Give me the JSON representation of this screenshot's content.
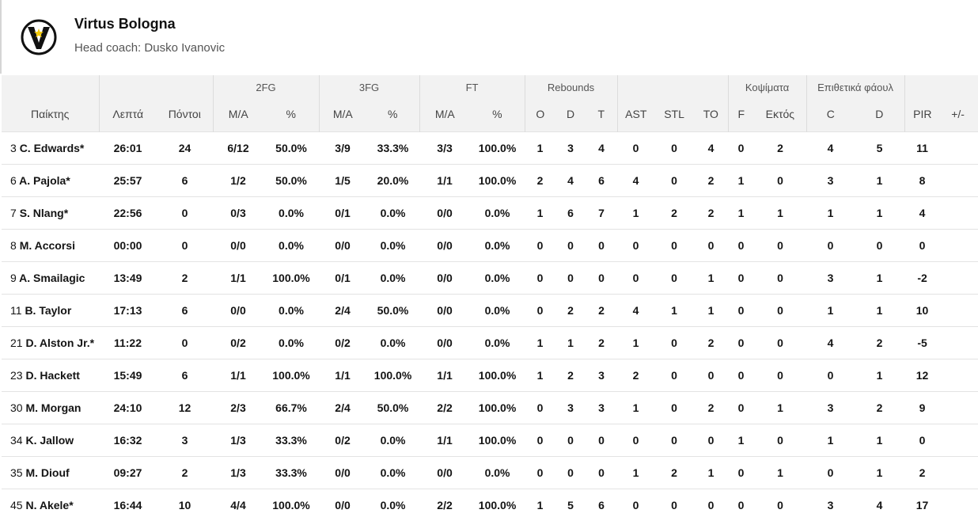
{
  "team": {
    "name": "Virtus Bologna",
    "coach": "Head coach: Dusko Ivanovic"
  },
  "icons": {
    "logo": "virtus-v-star-logo"
  },
  "colors": {
    "header_bg": "#f2f2f2",
    "logo_star": "#f2c700"
  },
  "groups": {
    "fg2": "2FG",
    "fg3": "3FG",
    "ft": "FT",
    "rebounds": "Rebounds",
    "blocks": "Κοψίματα",
    "fouls": "Επιθετικά φάουλ"
  },
  "columns": {
    "player": "Παίκτης",
    "minutes": "Λεπτά",
    "points": "Πόντοι",
    "fg2_ma": "M/A",
    "fg2_pct": "%",
    "fg3_ma": "M/A",
    "fg3_pct": "%",
    "ft_ma": "M/A",
    "ft_pct": "%",
    "reb_o": "O",
    "reb_d": "D",
    "reb_t": "T",
    "ast": "AST",
    "stl": "STL",
    "to": "TO",
    "blk_f": "F",
    "blk_ag": "Εκτός",
    "foul_c": "C",
    "foul_d": "D",
    "pir": "PIR",
    "pm": "+/-"
  },
  "rows": [
    {
      "num": "3",
      "name": "C. Edwards*",
      "min": "26:01",
      "pts": "24",
      "fg2": "6/12",
      "fg2p": "50.0%",
      "fg3": "3/9",
      "fg3p": "33.3%",
      "ft": "3/3",
      "ftp": "100.0%",
      "o": "1",
      "d": "3",
      "t": "4",
      "ast": "0",
      "stl": "0",
      "to": "4",
      "bf": "0",
      "bag": "2",
      "fc": "4",
      "fd": "5",
      "pir": "11",
      "pm": ""
    },
    {
      "num": "6",
      "name": "A. Pajola*",
      "min": "25:57",
      "pts": "6",
      "fg2": "1/2",
      "fg2p": "50.0%",
      "fg3": "1/5",
      "fg3p": "20.0%",
      "ft": "1/1",
      "ftp": "100.0%",
      "o": "2",
      "d": "4",
      "t": "6",
      "ast": "4",
      "stl": "0",
      "to": "2",
      "bf": "1",
      "bag": "0",
      "fc": "3",
      "fd": "1",
      "pir": "8",
      "pm": ""
    },
    {
      "num": "7",
      "name": "S. Nlang*",
      "min": "22:56",
      "pts": "0",
      "fg2": "0/3",
      "fg2p": "0.0%",
      "fg3": "0/1",
      "fg3p": "0.0%",
      "ft": "0/0",
      "ftp": "0.0%",
      "o": "1",
      "d": "6",
      "t": "7",
      "ast": "1",
      "stl": "2",
      "to": "2",
      "bf": "1",
      "bag": "1",
      "fc": "1",
      "fd": "1",
      "pir": "4",
      "pm": ""
    },
    {
      "num": "8",
      "name": "M. Accorsi",
      "min": "00:00",
      "pts": "0",
      "fg2": "0/0",
      "fg2p": "0.0%",
      "fg3": "0/0",
      "fg3p": "0.0%",
      "ft": "0/0",
      "ftp": "0.0%",
      "o": "0",
      "d": "0",
      "t": "0",
      "ast": "0",
      "stl": "0",
      "to": "0",
      "bf": "0",
      "bag": "0",
      "fc": "0",
      "fd": "0",
      "pir": "0",
      "pm": ""
    },
    {
      "num": "9",
      "name": "A. Smailagic",
      "min": "13:49",
      "pts": "2",
      "fg2": "1/1",
      "fg2p": "100.0%",
      "fg3": "0/1",
      "fg3p": "0.0%",
      "ft": "0/0",
      "ftp": "0.0%",
      "o": "0",
      "d": "0",
      "t": "0",
      "ast": "0",
      "stl": "0",
      "to": "1",
      "bf": "0",
      "bag": "0",
      "fc": "3",
      "fd": "1",
      "pir": "-2",
      "pm": ""
    },
    {
      "num": "11",
      "name": "B. Taylor",
      "min": "17:13",
      "pts": "6",
      "fg2": "0/0",
      "fg2p": "0.0%",
      "fg3": "2/4",
      "fg3p": "50.0%",
      "ft": "0/0",
      "ftp": "0.0%",
      "o": "0",
      "d": "2",
      "t": "2",
      "ast": "4",
      "stl": "1",
      "to": "1",
      "bf": "0",
      "bag": "0",
      "fc": "1",
      "fd": "1",
      "pir": "10",
      "pm": ""
    },
    {
      "num": "21",
      "name": "D. Alston Jr.*",
      "min": "11:22",
      "pts": "0",
      "fg2": "0/2",
      "fg2p": "0.0%",
      "fg3": "0/2",
      "fg3p": "0.0%",
      "ft": "0/0",
      "ftp": "0.0%",
      "o": "1",
      "d": "1",
      "t": "2",
      "ast": "1",
      "stl": "0",
      "to": "2",
      "bf": "0",
      "bag": "0",
      "fc": "4",
      "fd": "2",
      "pir": "-5",
      "pm": ""
    },
    {
      "num": "23",
      "name": "D. Hackett",
      "min": "15:49",
      "pts": "6",
      "fg2": "1/1",
      "fg2p": "100.0%",
      "fg3": "1/1",
      "fg3p": "100.0%",
      "ft": "1/1",
      "ftp": "100.0%",
      "o": "1",
      "d": "2",
      "t": "3",
      "ast": "2",
      "stl": "0",
      "to": "0",
      "bf": "0",
      "bag": "0",
      "fc": "0",
      "fd": "1",
      "pir": "12",
      "pm": ""
    },
    {
      "num": "30",
      "name": "M. Morgan",
      "min": "24:10",
      "pts": "12",
      "fg2": "2/3",
      "fg2p": "66.7%",
      "fg3": "2/4",
      "fg3p": "50.0%",
      "ft": "2/2",
      "ftp": "100.0%",
      "o": "0",
      "d": "3",
      "t": "3",
      "ast": "1",
      "stl": "0",
      "to": "2",
      "bf": "0",
      "bag": "1",
      "fc": "3",
      "fd": "2",
      "pir": "9",
      "pm": ""
    },
    {
      "num": "34",
      "name": "K. Jallow",
      "min": "16:32",
      "pts": "3",
      "fg2": "1/3",
      "fg2p": "33.3%",
      "fg3": "0/2",
      "fg3p": "0.0%",
      "ft": "1/1",
      "ftp": "100.0%",
      "o": "0",
      "d": "0",
      "t": "0",
      "ast": "0",
      "stl": "0",
      "to": "0",
      "bf": "1",
      "bag": "0",
      "fc": "1",
      "fd": "1",
      "pir": "0",
      "pm": ""
    },
    {
      "num": "35",
      "name": "M. Diouf",
      "min": "09:27",
      "pts": "2",
      "fg2": "1/3",
      "fg2p": "33.3%",
      "fg3": "0/0",
      "fg3p": "0.0%",
      "ft": "0/0",
      "ftp": "0.0%",
      "o": "0",
      "d": "0",
      "t": "0",
      "ast": "1",
      "stl": "2",
      "to": "1",
      "bf": "0",
      "bag": "1",
      "fc": "0",
      "fd": "1",
      "pir": "2",
      "pm": ""
    },
    {
      "num": "45",
      "name": "N. Akele*",
      "min": "16:44",
      "pts": "10",
      "fg2": "4/4",
      "fg2p": "100.0%",
      "fg3": "0/0",
      "fg3p": "0.0%",
      "ft": "2/2",
      "ftp": "100.0%",
      "o": "1",
      "d": "5",
      "t": "6",
      "ast": "0",
      "stl": "0",
      "to": "0",
      "bf": "0",
      "bag": "0",
      "fc": "3",
      "fd": "4",
      "pir": "17",
      "pm": ""
    }
  ]
}
